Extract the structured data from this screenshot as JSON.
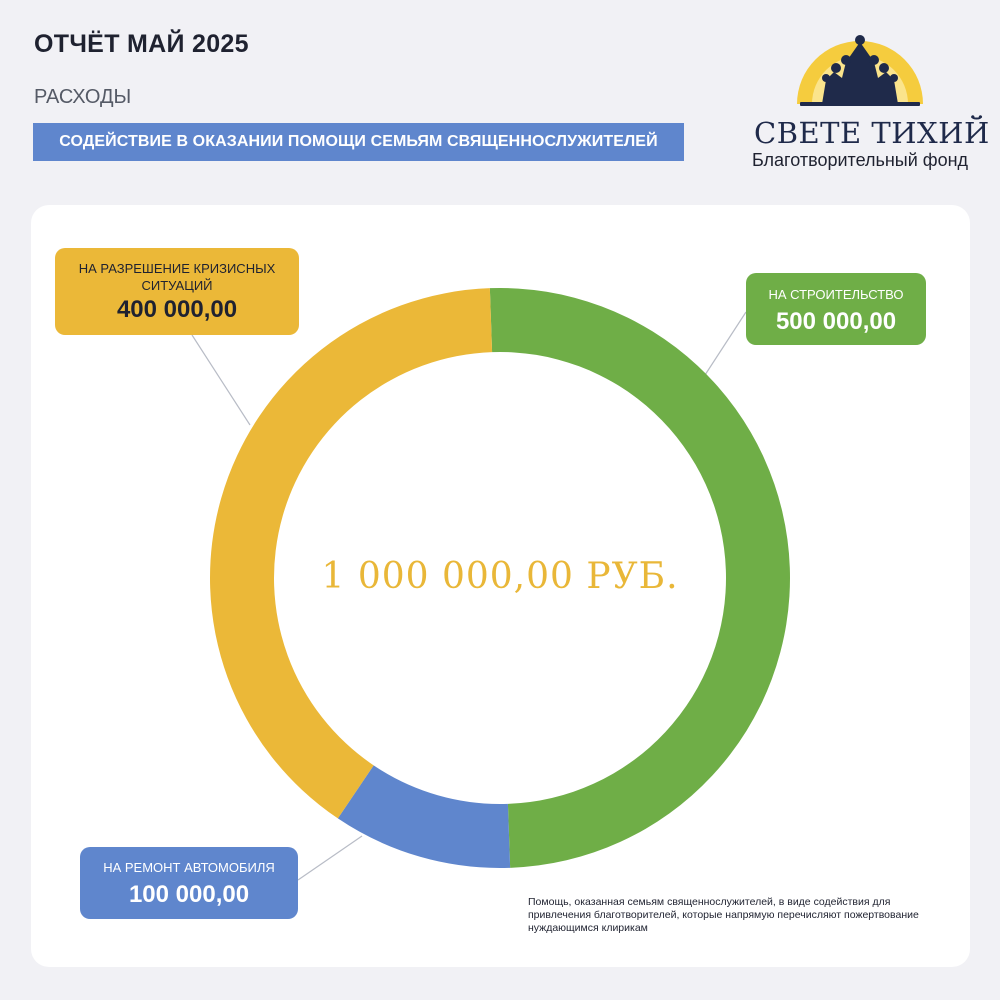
{
  "header": {
    "title": "ОТЧЁТ МАЙ 2025",
    "subtitle": "РАСХОДЫ",
    "banner": "СОДЕЙСТВИЕ В ОКАЗАНИИ ПОМОЩИ СЕМЬЯМ СВЯЩЕННОСЛУЖИТЕЛЕЙ"
  },
  "logo": {
    "name": "СВЕТЕ ТИХИЙ",
    "subtitle": "Благотворительный фонд"
  },
  "chart_data": {
    "type": "pie",
    "style": "donut",
    "center_label": "1 000 000,00 РУБ.",
    "slices": [
      {
        "label": "НА СТРОИТЕЛЬСТВО",
        "value": 500000,
        "value_text": "500 000,00",
        "color": "#6fae47"
      },
      {
        "label": "НА РЕМОНТ АВТОМОБИЛЯ",
        "value": 100000,
        "value_text": "100 000,00",
        "color": "#5f86cd"
      },
      {
        "label": "НА РАЗРЕШЕНИЕ КРИЗИСНЫХ СИТУАЦИЙ",
        "value": 400000,
        "value_text": "400 000,00",
        "color": "#ebb838"
      }
    ]
  },
  "footnote": "Помощь, оказанная семьям священнослужителей, в виде содействия для привлечения благотворителей, которые напрямую перечисляют пожертвование нуждающимся клирикам",
  "colors": {
    "background": "#f1f1f5",
    "card": "#ffffff",
    "title": "#1f2230",
    "accent_gold": "#e9b738"
  }
}
